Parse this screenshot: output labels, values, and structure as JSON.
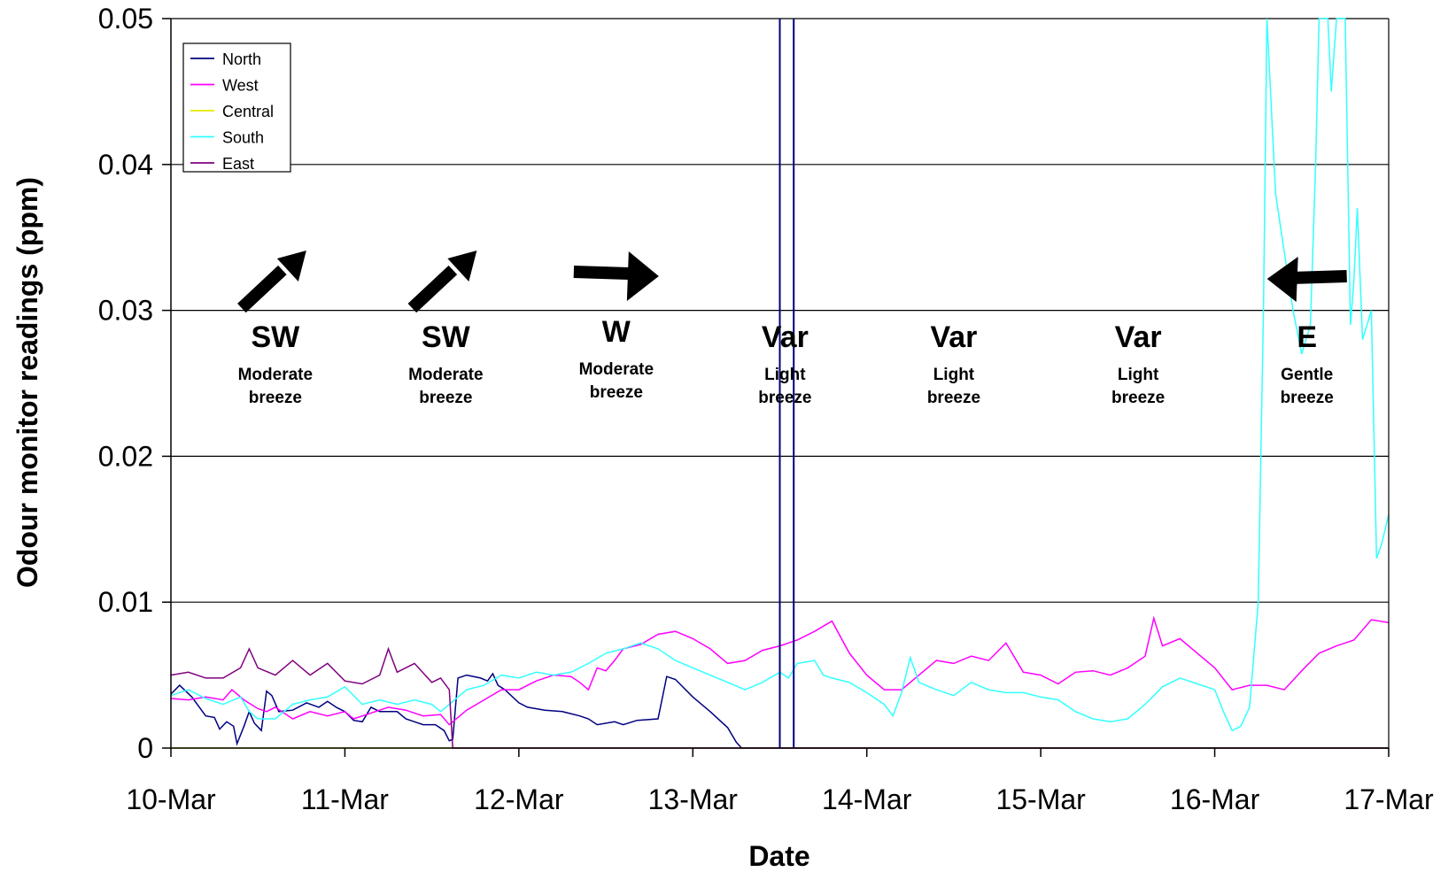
{
  "chart_data": {
    "type": "line",
    "title": "",
    "xlabel": "Date",
    "ylabel": "Odour monitor readings (ppm)",
    "x_start": "10-Mar",
    "x_end": "17-Mar",
    "x_ticks": [
      "10-Mar",
      "11-Mar",
      "12-Mar",
      "13-Mar",
      "14-Mar",
      "15-Mar",
      "16-Mar",
      "17-Mar"
    ],
    "ylim": [
      0,
      0.05
    ],
    "y_ticks": [
      0,
      0.01,
      0.02,
      0.03,
      0.04,
      0.05
    ],
    "y_tick_labels": [
      "0",
      "0.01",
      "0.02",
      "0.03",
      "0.04",
      "0.05"
    ],
    "grid": "horizontal",
    "legend": {
      "placement": "top-left"
    },
    "series": [
      {
        "name": "North",
        "color": "#000080",
        "points": [
          [
            0,
            0.0037
          ],
          [
            0.05,
            0.0043
          ],
          [
            0.12,
            0.0035
          ],
          [
            0.2,
            0.0022
          ],
          [
            0.25,
            0.0021
          ],
          [
            0.28,
            0.0013
          ],
          [
            0.32,
            0.0018
          ],
          [
            0.36,
            0.0015
          ],
          [
            0.38,
            0.0003
          ],
          [
            0.42,
            0.0015
          ],
          [
            0.45,
            0.0025
          ],
          [
            0.48,
            0.0017
          ],
          [
            0.52,
            0.0012
          ],
          [
            0.55,
            0.0039
          ],
          [
            0.58,
            0.0036
          ],
          [
            0.62,
            0.0025
          ],
          [
            0.7,
            0.0026
          ],
          [
            0.78,
            0.0031
          ],
          [
            0.85,
            0.0028
          ],
          [
            0.9,
            0.0032
          ],
          [
            0.95,
            0.0028
          ],
          [
            1.0,
            0.0025
          ],
          [
            1.05,
            0.0019
          ],
          [
            1.1,
            0.0018
          ],
          [
            1.15,
            0.0028
          ],
          [
            1.2,
            0.0025
          ],
          [
            1.3,
            0.0025
          ],
          [
            1.35,
            0.002
          ],
          [
            1.4,
            0.0018
          ],
          [
            1.45,
            0.0016
          ],
          [
            1.52,
            0.0016
          ],
          [
            1.57,
            0.0012
          ],
          [
            1.6,
            0.0005
          ],
          [
            1.62,
            0.0006
          ],
          [
            1.65,
            0.0048
          ],
          [
            1.7,
            0.005
          ],
          [
            1.78,
            0.0048
          ],
          [
            1.82,
            0.0046
          ],
          [
            1.85,
            0.0051
          ],
          [
            1.88,
            0.0043
          ],
          [
            1.92,
            0.004
          ],
          [
            2.0,
            0.0031
          ],
          [
            2.05,
            0.0028
          ],
          [
            2.15,
            0.0026
          ],
          [
            2.25,
            0.0025
          ],
          [
            2.35,
            0.0022
          ],
          [
            2.4,
            0.002
          ],
          [
            2.45,
            0.0016
          ],
          [
            2.55,
            0.0018
          ],
          [
            2.6,
            0.0016
          ],
          [
            2.68,
            0.0019
          ],
          [
            2.8,
            0.002
          ],
          [
            2.85,
            0.0049
          ],
          [
            2.9,
            0.0047
          ],
          [
            3.0,
            0.0035
          ],
          [
            3.1,
            0.0025
          ],
          [
            3.2,
            0.0014
          ],
          [
            3.25,
            0.0004
          ],
          [
            3.28,
            0.0
          ],
          [
            7.0,
            0.0
          ]
        ]
      },
      {
        "name": "West",
        "color": "#ff00ff",
        "points": [
          [
            0,
            0.0034
          ],
          [
            0.1,
            0.0033
          ],
          [
            0.2,
            0.0035
          ],
          [
            0.3,
            0.0033
          ],
          [
            0.35,
            0.004
          ],
          [
            0.42,
            0.0033
          ],
          [
            0.5,
            0.0027
          ],
          [
            0.55,
            0.0025
          ],
          [
            0.6,
            0.0028
          ],
          [
            0.7,
            0.002
          ],
          [
            0.8,
            0.0025
          ],
          [
            0.9,
            0.0022
          ],
          [
            1.0,
            0.0025
          ],
          [
            1.05,
            0.002
          ],
          [
            1.15,
            0.0024
          ],
          [
            1.25,
            0.0028
          ],
          [
            1.35,
            0.0026
          ],
          [
            1.45,
            0.0022
          ],
          [
            1.55,
            0.0023
          ],
          [
            1.6,
            0.0016
          ],
          [
            1.7,
            0.0026
          ],
          [
            1.8,
            0.0033
          ],
          [
            1.9,
            0.004
          ],
          [
            2.0,
            0.004
          ],
          [
            2.1,
            0.0046
          ],
          [
            2.2,
            0.005
          ],
          [
            2.3,
            0.0049
          ],
          [
            2.35,
            0.0045
          ],
          [
            2.4,
            0.004
          ],
          [
            2.45,
            0.0055
          ],
          [
            2.5,
            0.0053
          ],
          [
            2.55,
            0.006
          ],
          [
            2.6,
            0.0068
          ],
          [
            2.7,
            0.0071
          ],
          [
            2.8,
            0.0078
          ],
          [
            2.9,
            0.008
          ],
          [
            3.0,
            0.0075
          ],
          [
            3.1,
            0.0068
          ],
          [
            3.2,
            0.0058
          ],
          [
            3.3,
            0.006
          ],
          [
            3.4,
            0.0067
          ],
          [
            3.5,
            0.007
          ],
          [
            3.6,
            0.0074
          ],
          [
            3.7,
            0.008
          ],
          [
            3.8,
            0.0087
          ],
          [
            3.9,
            0.0065
          ],
          [
            4.0,
            0.005
          ],
          [
            4.1,
            0.004
          ],
          [
            4.2,
            0.004
          ],
          [
            4.3,
            0.005
          ],
          [
            4.4,
            0.006
          ],
          [
            4.5,
            0.0058
          ],
          [
            4.6,
            0.0063
          ],
          [
            4.7,
            0.006
          ],
          [
            4.8,
            0.0072
          ],
          [
            4.9,
            0.0052
          ],
          [
            5.0,
            0.005
          ],
          [
            5.1,
            0.0044
          ],
          [
            5.2,
            0.0052
          ],
          [
            5.3,
            0.0053
          ],
          [
            5.4,
            0.005
          ],
          [
            5.5,
            0.0055
          ],
          [
            5.6,
            0.0063
          ],
          [
            5.65,
            0.0089
          ],
          [
            5.7,
            0.007
          ],
          [
            5.8,
            0.0075
          ],
          [
            5.9,
            0.0065
          ],
          [
            6.0,
            0.0055
          ],
          [
            6.1,
            0.004
          ],
          [
            6.2,
            0.0043
          ],
          [
            6.3,
            0.0043
          ],
          [
            6.4,
            0.004
          ],
          [
            6.5,
            0.0053
          ],
          [
            6.6,
            0.0065
          ],
          [
            6.7,
            0.007
          ],
          [
            6.8,
            0.0074
          ],
          [
            6.9,
            0.0088
          ],
          [
            7.0,
            0.0086
          ]
        ]
      },
      {
        "name": "Central",
        "color": "#e6e600",
        "points": [
          [
            0,
            0.0
          ],
          [
            7.0,
            0.0
          ]
        ]
      },
      {
        "name": "South",
        "color": "#33ffff",
        "points": [
          [
            0,
            0.0036
          ],
          [
            0.1,
            0.004
          ],
          [
            0.2,
            0.0034
          ],
          [
            0.3,
            0.003
          ],
          [
            0.4,
            0.0035
          ],
          [
            0.45,
            0.0025
          ],
          [
            0.5,
            0.002
          ],
          [
            0.6,
            0.002
          ],
          [
            0.7,
            0.003
          ],
          [
            0.8,
            0.0033
          ],
          [
            0.9,
            0.0035
          ],
          [
            1.0,
            0.0042
          ],
          [
            1.1,
            0.003
          ],
          [
            1.2,
            0.0033
          ],
          [
            1.3,
            0.003
          ],
          [
            1.4,
            0.0033
          ],
          [
            1.5,
            0.003
          ],
          [
            1.55,
            0.0025
          ],
          [
            1.6,
            0.003
          ],
          [
            1.7,
            0.004
          ],
          [
            1.8,
            0.0043
          ],
          [
            1.9,
            0.005
          ],
          [
            2.0,
            0.0048
          ],
          [
            2.1,
            0.0052
          ],
          [
            2.2,
            0.005
          ],
          [
            2.3,
            0.0052
          ],
          [
            2.4,
            0.0058
          ],
          [
            2.5,
            0.0065
          ],
          [
            2.6,
            0.0068
          ],
          [
            2.7,
            0.0072
          ],
          [
            2.8,
            0.0068
          ],
          [
            2.9,
            0.006
          ],
          [
            3.0,
            0.0055
          ],
          [
            3.1,
            0.005
          ],
          [
            3.2,
            0.0045
          ],
          [
            3.3,
            0.004
          ],
          [
            3.4,
            0.0045
          ],
          [
            3.5,
            0.0052
          ],
          [
            3.55,
            0.0048
          ],
          [
            3.6,
            0.0058
          ],
          [
            3.7,
            0.006
          ],
          [
            3.75,
            0.005
          ],
          [
            3.8,
            0.0048
          ],
          [
            3.9,
            0.0045
          ],
          [
            4.0,
            0.0038
          ],
          [
            4.1,
            0.003
          ],
          [
            4.15,
            0.0022
          ],
          [
            4.2,
            0.0038
          ],
          [
            4.25,
            0.0062
          ],
          [
            4.3,
            0.0045
          ],
          [
            4.4,
            0.004
          ],
          [
            4.5,
            0.0036
          ],
          [
            4.6,
            0.0045
          ],
          [
            4.7,
            0.004
          ],
          [
            4.8,
            0.0038
          ],
          [
            4.9,
            0.0038
          ],
          [
            5.0,
            0.0035
          ],
          [
            5.1,
            0.0033
          ],
          [
            5.2,
            0.0025
          ],
          [
            5.3,
            0.002
          ],
          [
            5.4,
            0.0018
          ],
          [
            5.5,
            0.002
          ],
          [
            5.6,
            0.003
          ],
          [
            5.7,
            0.0042
          ],
          [
            5.8,
            0.0048
          ],
          [
            5.9,
            0.0044
          ],
          [
            6.0,
            0.004
          ],
          [
            6.05,
            0.0025
          ],
          [
            6.1,
            0.0012
          ],
          [
            6.15,
            0.0015
          ],
          [
            6.2,
            0.0028
          ],
          [
            6.25,
            0.01
          ],
          [
            6.28,
            0.03
          ],
          [
            6.3,
            0.05
          ],
          [
            6.35,
            0.038
          ],
          [
            6.4,
            0.034
          ],
          [
            6.45,
            0.03
          ],
          [
            6.5,
            0.027
          ],
          [
            6.55,
            0.029
          ],
          [
            6.58,
            0.04
          ],
          [
            6.6,
            0.05
          ],
          [
            6.65,
            0.05
          ],
          [
            6.67,
            0.045
          ],
          [
            6.7,
            0.05
          ],
          [
            6.75,
            0.05
          ],
          [
            6.78,
            0.029
          ],
          [
            6.8,
            0.032
          ],
          [
            6.82,
            0.037
          ],
          [
            6.85,
            0.028
          ],
          [
            6.9,
            0.03
          ],
          [
            6.93,
            0.013
          ],
          [
            6.96,
            0.014
          ],
          [
            7.0,
            0.016
          ]
        ]
      },
      {
        "name": "East",
        "color": "#800080",
        "points": [
          [
            0,
            0.005
          ],
          [
            0.1,
            0.0052
          ],
          [
            0.2,
            0.0048
          ],
          [
            0.3,
            0.0048
          ],
          [
            0.4,
            0.0055
          ],
          [
            0.45,
            0.0068
          ],
          [
            0.5,
            0.0055
          ],
          [
            0.6,
            0.005
          ],
          [
            0.7,
            0.006
          ],
          [
            0.8,
            0.005
          ],
          [
            0.9,
            0.0058
          ],
          [
            1.0,
            0.0046
          ],
          [
            1.1,
            0.0044
          ],
          [
            1.2,
            0.005
          ],
          [
            1.25,
            0.0068
          ],
          [
            1.3,
            0.0052
          ],
          [
            1.4,
            0.0058
          ],
          [
            1.5,
            0.0045
          ],
          [
            1.55,
            0.0048
          ],
          [
            1.6,
            0.004
          ],
          [
            1.62,
            0.0
          ],
          [
            7.0,
            0.0
          ]
        ]
      }
    ],
    "vertical_markers": [
      {
        "x": 3.5,
        "color": "#000080"
      },
      {
        "x": 3.58,
        "color": "#000080"
      }
    ],
    "annotations": [
      {
        "x": 0.6,
        "direction": "SW",
        "description_line1": "Moderate",
        "description_line2": "breeze",
        "arrow": "north-east"
      },
      {
        "x": 1.58,
        "direction": "SW",
        "description_line1": "Moderate",
        "description_line2": "breeze",
        "arrow": "north-east"
      },
      {
        "x": 2.56,
        "direction": "W",
        "description_line1": "Moderate",
        "description_line2": "breeze",
        "arrow": "east"
      },
      {
        "x": 3.53,
        "direction": "Var",
        "description_line1": "Light",
        "description_line2": "breeze",
        "arrow": "none"
      },
      {
        "x": 4.5,
        "direction": "Var",
        "description_line1": "Light",
        "description_line2": "breeze",
        "arrow": "none"
      },
      {
        "x": 5.56,
        "direction": "Var",
        "description_line1": "Light",
        "description_line2": "breeze",
        "arrow": "none"
      },
      {
        "x": 6.53,
        "direction": "E",
        "description_line1": "Gentle",
        "description_line2": "breeze",
        "arrow": "west"
      }
    ]
  }
}
